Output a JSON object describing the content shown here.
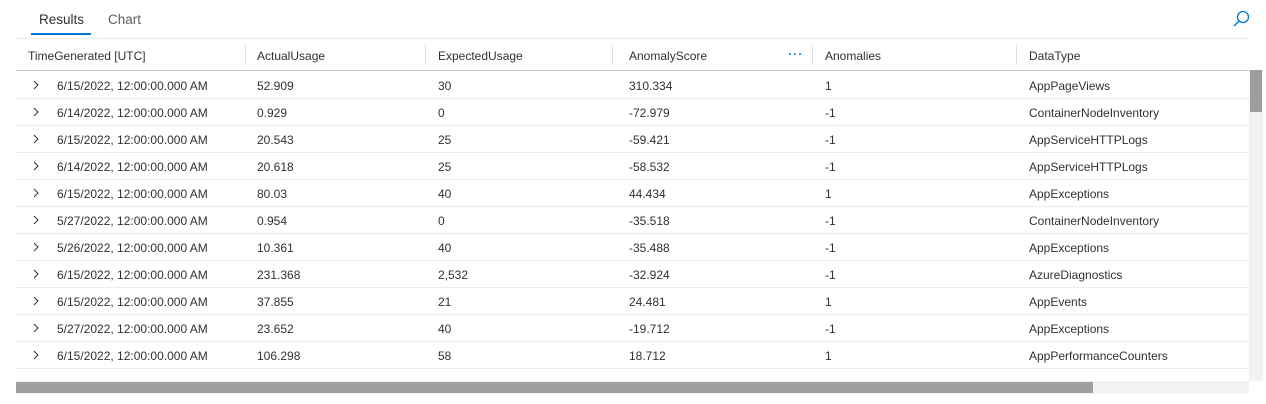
{
  "tabs": [
    "Results",
    "Chart"
  ],
  "table": {
    "columns": [
      "TimeGenerated [UTC]",
      "ActualUsage",
      "ExpectedUsage",
      "AnomalyScore",
      "Anomalies",
      "DataType"
    ],
    "rows": [
      [
        "6/15/2022, 12:00:00.000 AM",
        "52.909",
        "30",
        "310.334",
        "1",
        "AppPageViews"
      ],
      [
        "6/14/2022, 12:00:00.000 AM",
        "0.929",
        "0",
        "-72.979",
        "-1",
        "ContainerNodeInventory"
      ],
      [
        "6/15/2022, 12:00:00.000 AM",
        "20.543",
        "25",
        "-59.421",
        "-1",
        "AppServiceHTTPLogs"
      ],
      [
        "6/14/2022, 12:00:00.000 AM",
        "20.618",
        "25",
        "-58.532",
        "-1",
        "AppServiceHTTPLogs"
      ],
      [
        "6/15/2022, 12:00:00.000 AM",
        "80.03",
        "40",
        "44.434",
        "1",
        "AppExceptions"
      ],
      [
        "5/27/2022, 12:00:00.000 AM",
        "0.954",
        "0",
        "-35.518",
        "-1",
        "ContainerNodeInventory"
      ],
      [
        "5/26/2022, 12:00:00.000 AM",
        "10.361",
        "40",
        "-35.488",
        "-1",
        "AppExceptions"
      ],
      [
        "6/15/2022, 12:00:00.000 AM",
        "231.368",
        "2,532",
        "-32.924",
        "-1",
        "AzureDiagnostics"
      ],
      [
        "6/15/2022, 12:00:00.000 AM",
        "37.855",
        "21",
        "24.481",
        "1",
        "AppEvents"
      ],
      [
        "5/27/2022, 12:00:00.000 AM",
        "23.652",
        "40",
        "-19.712",
        "-1",
        "AppExceptions"
      ],
      [
        "6/15/2022, 12:00:00.000 AM",
        "106.298",
        "58",
        "18.712",
        "1",
        "AppPerformanceCounters"
      ]
    ]
  }
}
